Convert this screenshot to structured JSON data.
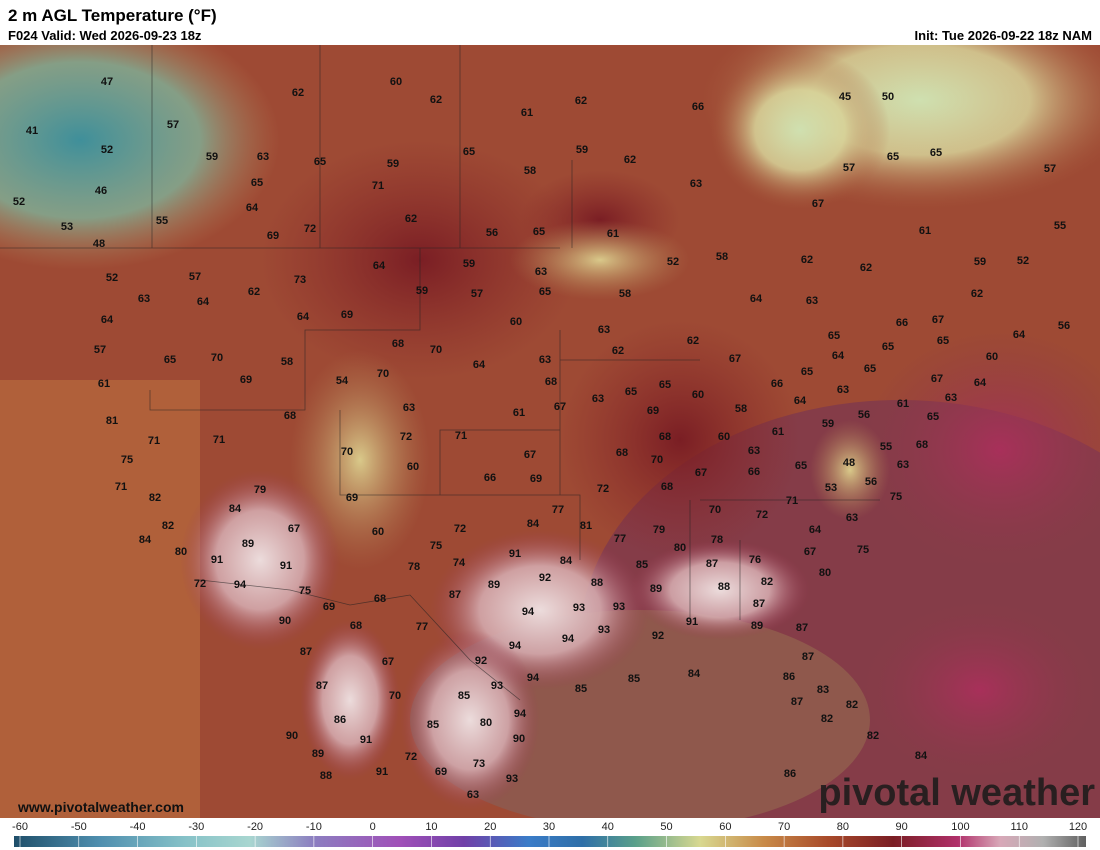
{
  "header": {
    "title": "2 m AGL Temperature (°F)",
    "valid": "F024 Valid: Wed 2026-09-23 18z",
    "init": "Init: Tue 2026-09-22 18z NAM"
  },
  "map": {
    "labels": [
      47,
      62,
      60,
      62,
      57,
      41,
      52,
      59,
      63,
      65,
      59,
      65,
      61,
      62,
      66,
      59,
      62,
      58,
      71,
      65,
      46,
      52,
      64,
      55,
      62,
      53,
      63,
      45,
      50,
      67,
      65,
      65,
      57,
      57,
      69,
      72,
      56,
      65,
      61,
      52,
      58,
      48,
      61,
      55,
      52,
      57,
      73,
      64,
      59,
      63,
      62,
      62,
      59,
      52,
      63,
      64,
      62,
      59,
      57,
      65,
      58,
      64,
      63,
      62,
      64,
      64,
      69,
      60,
      63,
      66,
      67,
      64,
      56,
      57,
      65,
      70,
      58,
      68,
      70,
      62,
      62,
      65,
      65,
      65,
      60,
      61,
      54,
      70,
      64,
      63,
      68,
      65,
      67,
      65,
      64,
      65,
      67,
      64,
      63,
      65,
      60,
      66,
      64,
      63,
      61,
      63,
      65,
      69,
      81,
      68,
      63,
      61,
      67,
      69,
      58,
      56,
      71,
      71,
      72,
      71,
      68,
      60,
      61,
      59,
      68,
      55,
      75,
      70,
      60,
      67,
      68,
      70,
      63,
      48,
      63,
      66,
      69,
      67,
      66,
      65,
      71,
      79,
      72,
      68,
      53,
      56,
      75,
      82,
      69,
      84,
      77,
      70,
      72,
      71,
      63,
      82,
      67,
      60,
      72,
      84,
      81,
      79,
      64,
      84,
      77,
      75,
      78,
      80,
      89,
      91,
      91,
      91,
      74,
      84,
      80,
      76,
      67,
      75,
      78,
      85,
      87,
      72,
      94,
      89,
      92,
      88,
      89,
      88,
      82,
      80,
      75,
      87,
      68,
      69,
      94,
      93,
      93,
      87,
      90,
      68,
      77,
      93,
      94,
      91,
      92,
      89,
      87,
      87,
      94,
      92,
      67,
      87,
      87,
      93,
      94,
      85,
      85,
      84,
      86,
      83,
      70,
      85,
      86,
      94,
      85,
      80,
      87,
      82,
      82,
      82,
      90,
      91,
      90,
      72,
      89,
      73,
      84,
      88,
      91,
      69,
      93,
      86,
      63
    ]
  },
  "colorbar": {
    "ticks": [
      -60,
      -50,
      -40,
      -30,
      -20,
      -10,
      0,
      10,
      20,
      30,
      40,
      50,
      60,
      70,
      80,
      90,
      100,
      110,
      120
    ]
  },
  "footer": {
    "site": "www.pivotalweather.com",
    "brand": "pivotal weather"
  }
}
